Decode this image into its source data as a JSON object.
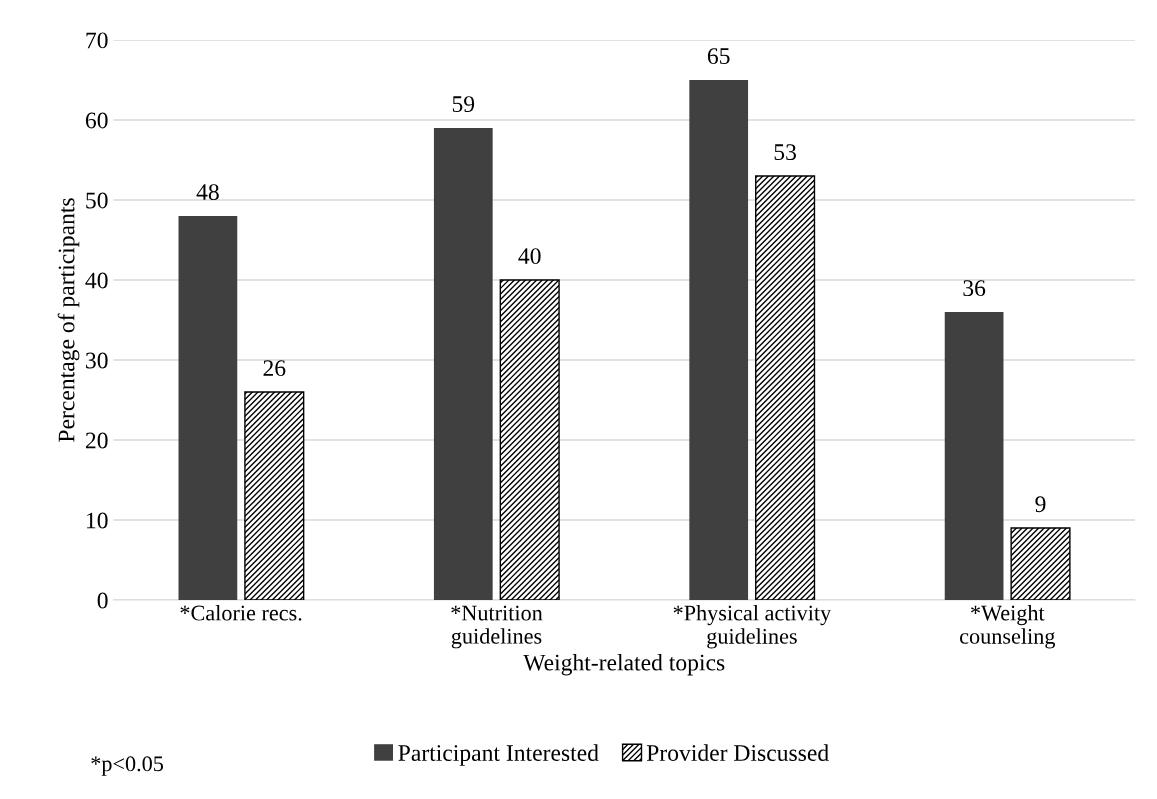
{
  "chart_data": {
    "type": "bar",
    "xlabel": "Weight-related topics",
    "ylabel": "Percentage of participants",
    "categories": [
      "*Calorie recs.",
      "*Nutrition\nguidelines",
      "*Physical activity\nguidelines",
      "*Weight\ncounseling"
    ],
    "series": [
      {
        "name": "Participant Interested",
        "color": "#404040",
        "values": [
          48,
          59,
          65,
          36
        ]
      },
      {
        "name": "Provider Discussed",
        "color": "#000000",
        "values": [
          26,
          40,
          53,
          9
        ]
      }
    ],
    "ylim": [
      0,
      70
    ],
    "yticks": [
      0,
      10,
      20,
      30,
      40,
      50,
      60,
      70
    ],
    "grid": "y",
    "legend": "bottom",
    "data_labels": true,
    "annotations": [
      "*p<0.05"
    ]
  }
}
